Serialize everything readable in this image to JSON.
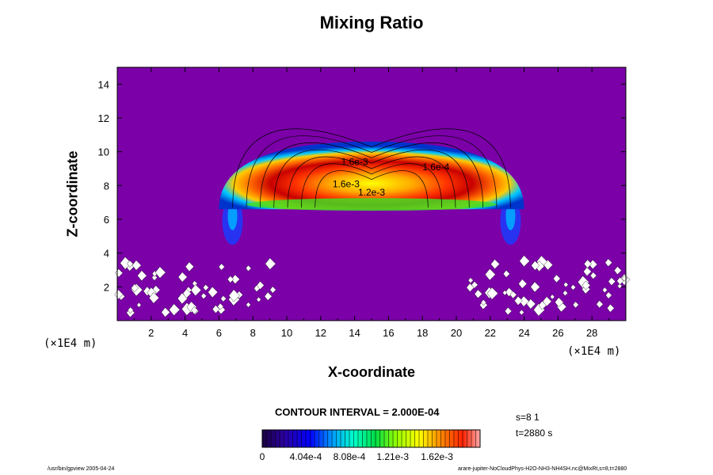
{
  "chart_data": {
    "type": "heatmap",
    "title": "Mixing Ratio",
    "xlabel": "X-coordinate",
    "ylabel": "Z-coordinate",
    "x_unit_label": "(×1E4 m)",
    "y_unit_label": "(×1E4 m)",
    "xlim": [
      0,
      30
    ],
    "ylim": [
      0,
      15
    ],
    "x_ticks": [
      "2",
      "4",
      "6",
      "8",
      "10",
      "12",
      "14",
      "16",
      "18",
      "20",
      "22",
      "24",
      "26",
      "28"
    ],
    "y_ticks": [
      "2",
      "4",
      "6",
      "8",
      "10",
      "12",
      "14"
    ],
    "colorbar": {
      "tick_labels": [
        "0",
        "4.04e-4",
        "8.08e-4",
        "1.21e-3",
        "1.62e-3"
      ],
      "range": [
        0,
        0.00202
      ]
    },
    "contour_interval_text": "CONTOUR INTERVAL = 2.000E-04",
    "contour_labels": [
      {
        "text": "1.6e-3",
        "x": 14.0,
        "z": 9.2
      },
      {
        "text": "1.6e-3",
        "x": 13.5,
        "z": 7.9
      },
      {
        "text": "1.2e-3",
        "x": 15.0,
        "z": 7.4
      },
      {
        "text": "1.6e-4",
        "x": 18.8,
        "z": 8.9
      }
    ],
    "features": {
      "cloud_center_x": 15.0,
      "cloud_center_z": 7.6,
      "cloud_half_width": 9.0,
      "cloud_top_z": 10.6,
      "cloud_base_z": 6.6,
      "peak_value": 0.0018,
      "background_value": 0.0
    }
  },
  "info": {
    "step": "s=8 1",
    "time": "t=2880 s"
  },
  "footer": {
    "left": "/usr/bin/gpview 2005-04-24",
    "right": "arare-jupiter-NoCloudPhys-H2O-NH3-NH4SH.nc@MixRt,s=8,t=2880"
  },
  "colors": {
    "background": "#7b00a8",
    "speckle": "#ffffff",
    "contour_line": "#000000"
  }
}
